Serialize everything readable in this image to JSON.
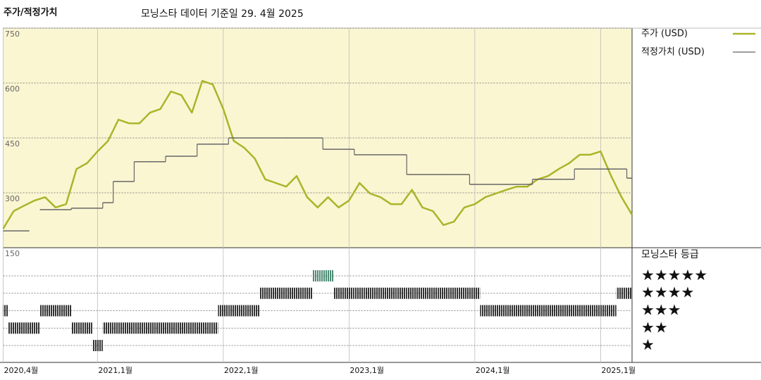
{
  "chart_data": [
    {
      "type": "line",
      "title": "주가/적정가치",
      "subtitle": "모닝스타 데이터 기준일 29. 4월 2025",
      "x": [
        "2020-04",
        "2020-05",
        "2020-06",
        "2020-07",
        "2020-08",
        "2020-09",
        "2020-10",
        "2020-11",
        "2020-12",
        "2021-01",
        "2021-02",
        "2021-03",
        "2021-04",
        "2021-05",
        "2021-06",
        "2021-07",
        "2021-08",
        "2021-09",
        "2021-10",
        "2021-11",
        "2021-12",
        "2022-01",
        "2022-02",
        "2022-03",
        "2022-04",
        "2022-05",
        "2022-06",
        "2022-07",
        "2022-08",
        "2022-09",
        "2022-10",
        "2022-11",
        "2022-12",
        "2023-01",
        "2023-02",
        "2023-03",
        "2023-04",
        "2023-05",
        "2023-06",
        "2023-07",
        "2023-08",
        "2023-09",
        "2023-10",
        "2023-11",
        "2023-12",
        "2024-01",
        "2024-02",
        "2024-03",
        "2024-04",
        "2024-05",
        "2024-06",
        "2024-07",
        "2024-08",
        "2024-09",
        "2024-10",
        "2024-11",
        "2024-12",
        "2025-01",
        "2025-02",
        "2025-03",
        "2025-04"
      ],
      "series": [
        {
          "name": "주가 (USD)",
          "color": "#a9b52a",
          "values": [
            202,
            250,
            265,
            279,
            288,
            260,
            269,
            365,
            381,
            413,
            442,
            500,
            490,
            490,
            519,
            529,
            577,
            567,
            519,
            606,
            596,
            529,
            442,
            423,
            394,
            337,
            327,
            317,
            346,
            288,
            260,
            288,
            260,
            279,
            327,
            298,
            288,
            269,
            269,
            308,
            260,
            250,
            212,
            221,
            260,
            269,
            288,
            298,
            308,
            317,
            317,
            337,
            346,
            365,
            381,
            404,
            404,
            413,
            346,
            288,
            240
          ]
        },
        {
          "name": "적정가치 (USD)",
          "color": "#666666",
          "step": true,
          "values": [
            196,
            196,
            196,
            null,
            254,
            254,
            254,
            258,
            258,
            258,
            273,
            331,
            331,
            385,
            385,
            385,
            400,
            400,
            400,
            433,
            433,
            433,
            450,
            450,
            450,
            450,
            450,
            450,
            450,
            450,
            450,
            419,
            419,
            419,
            404,
            404,
            404,
            404,
            404,
            350,
            350,
            350,
            350,
            350,
            350,
            323,
            323,
            323,
            323,
            323,
            323,
            337,
            337,
            337,
            337,
            365,
            365,
            365,
            365,
            365,
            340
          ]
        }
      ],
      "xlim": [
        "2020-04",
        "2025-04"
      ],
      "xticks": [
        {
          "value": "2020-04",
          "label": "2020,4월"
        },
        {
          "value": "2021-01",
          "label": "2021,1월"
        },
        {
          "value": "2022-01",
          "label": "2022,1월"
        },
        {
          "value": "2023-01",
          "label": "2023,1월"
        },
        {
          "value": "2024-01",
          "label": "2024,1월"
        },
        {
          "value": "2025-01",
          "label": "2025,1월"
        }
      ],
      "ylim": [
        150,
        750
      ],
      "yticks": [
        150,
        300,
        450,
        600,
        750
      ],
      "background": "#faf6d2",
      "grid": true
    },
    {
      "type": "rating",
      "title": "모닝스타 등급",
      "x": [
        "2020-04",
        "2020-05",
        "2020-06",
        "2020-07",
        "2020-08",
        "2020-09",
        "2020-10",
        "2020-11",
        "2020-12",
        "2021-01",
        "2021-02",
        "2021-03",
        "2021-04",
        "2021-05",
        "2021-06",
        "2021-07",
        "2021-08",
        "2021-09",
        "2021-10",
        "2021-11",
        "2021-12",
        "2022-01",
        "2022-02",
        "2022-03",
        "2022-04",
        "2022-05",
        "2022-06",
        "2022-07",
        "2022-08",
        "2022-09",
        "2022-10",
        "2022-11",
        "2022-12",
        "2023-01",
        "2023-02",
        "2023-03",
        "2023-04",
        "2023-05",
        "2023-06",
        "2023-07",
        "2023-08",
        "2023-09",
        "2023-10",
        "2023-11",
        "2023-12",
        "2024-01",
        "2024-02",
        "2024-03",
        "2024-04",
        "2024-05",
        "2024-06",
        "2024-07",
        "2024-08",
        "2024-09",
        "2024-10",
        "2024-11",
        "2024-12",
        "2025-01",
        "2025-02",
        "2025-03",
        "2025-04"
      ],
      "values": [
        3,
        2,
        2,
        2,
        3,
        3,
        3,
        2,
        2,
        1,
        2,
        2,
        2,
        2,
        2,
        2,
        2,
        2,
        2,
        2,
        2,
        3,
        3,
        3,
        3,
        4,
        4,
        4,
        4,
        4,
        5,
        5,
        4,
        4,
        4,
        4,
        4,
        4,
        4,
        4,
        4,
        4,
        4,
        4,
        4,
        4,
        3,
        3,
        3,
        3,
        3,
        3,
        3,
        3,
        3,
        3,
        3,
        3,
        3,
        4,
        4
      ],
      "color": "#333333",
      "top_color": "#4d8b74",
      "ylim": [
        0.5,
        5.5
      ],
      "yticks": [
        {
          "value": 5,
          "label": "★★★★★"
        },
        {
          "value": 4,
          "label": "★★★★"
        },
        {
          "value": 3,
          "label": "★★★"
        },
        {
          "value": 2,
          "label": "★★"
        },
        {
          "value": 1,
          "label": "★"
        }
      ]
    }
  ]
}
